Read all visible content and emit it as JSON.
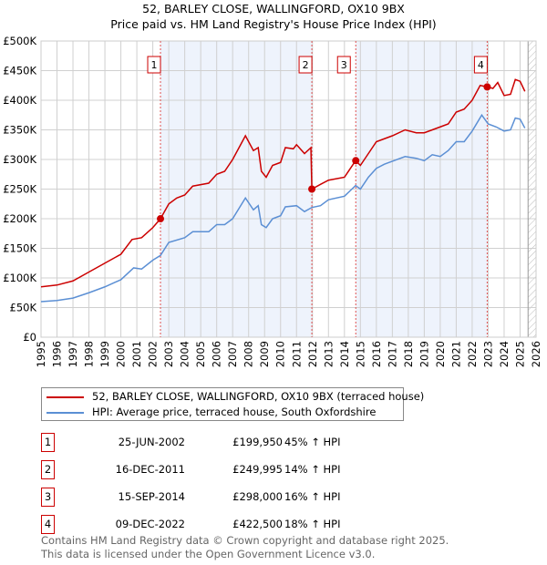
{
  "chart_data": {
    "type": "line",
    "title": "52, BARLEY CLOSE, WALLINGFORD, OX10 9BX",
    "subtitle": "Price paid vs. HM Land Registry's House Price Index (HPI)",
    "xlim": [
      1995,
      2026
    ],
    "ylim": [
      0,
      500000
    ],
    "x_ticks": [
      "1995",
      "1996",
      "1997",
      "1998",
      "1999",
      "2000",
      "2001",
      "2002",
      "2003",
      "2004",
      "2005",
      "2006",
      "2007",
      "2008",
      "2009",
      "2010",
      "2011",
      "2012",
      "2013",
      "2014",
      "2015",
      "2016",
      "2017",
      "2018",
      "2019",
      "2020",
      "2021",
      "2022",
      "2023",
      "2024",
      "2025",
      "2026"
    ],
    "y_ticks": [
      {
        "v": 0,
        "l": "£0"
      },
      {
        "v": 50000,
        "l": "£50K"
      },
      {
        "v": 100000,
        "l": "£100K"
      },
      {
        "v": 150000,
        "l": "£150K"
      },
      {
        "v": 200000,
        "l": "£200K"
      },
      {
        "v": 250000,
        "l": "£250K"
      },
      {
        "v": 300000,
        "l": "£300K"
      },
      {
        "v": 350000,
        "l": "£350K"
      },
      {
        "v": 400000,
        "l": "£400K"
      },
      {
        "v": 450000,
        "l": "£450K"
      },
      {
        "v": 500000,
        "l": "£500K"
      }
    ],
    "grid": true,
    "series": [
      {
        "name": "52, BARLEY CLOSE, WALLINGFORD, OX10 9BX (terraced house)",
        "color": "#cc0000",
        "x": [
          1995,
          1996,
          1997,
          1998,
          1999,
          2000,
          2000.7,
          2001.3,
          2002,
          2002.48,
          2003,
          2003.5,
          2004,
          2004.5,
          2005.5,
          2006,
          2006.5,
          2007,
          2007.8,
          2008.3,
          2008.6,
          2008.8,
          2009.1,
          2009.5,
          2010,
          2010.3,
          2010.8,
          2011,
          2011.5,
          2011.9,
          2011.96,
          2012.5,
          2013,
          2014,
          2014.7,
          2015,
          2015.5,
          2016,
          2016.5,
          2017,
          2017.8,
          2018.5,
          2019,
          2019.5,
          2020,
          2020.5,
          2021,
          2021.5,
          2022,
          2022.5,
          2022.94,
          2023.3,
          2023.6,
          2024,
          2024.4,
          2024.7,
          2025,
          2025.3
        ],
        "y": [
          85000,
          88000,
          95000,
          110000,
          125000,
          140000,
          165000,
          168000,
          185000,
          199950,
          225000,
          235000,
          240000,
          255000,
          260000,
          275000,
          280000,
          300000,
          340000,
          315000,
          320000,
          280000,
          270000,
          290000,
          295000,
          320000,
          318000,
          325000,
          310000,
          320000,
          249995,
          258000,
          265000,
          270000,
          298000,
          290000,
          310000,
          330000,
          335000,
          340000,
          350000,
          345000,
          345000,
          350000,
          355000,
          360000,
          380000,
          385000,
          400000,
          425000,
          422500,
          420000,
          430000,
          408000,
          410000,
          435000,
          432000,
          415000
        ]
      },
      {
        "name": "HPI: Average price, terraced house, South Oxfordshire",
        "color": "#5b8fd4",
        "x": [
          1995,
          1996,
          1997,
          1998,
          1999,
          2000,
          2000.8,
          2001.3,
          2002,
          2002.48,
          2003,
          2004,
          2004.5,
          2005.5,
          2006,
          2006.5,
          2007,
          2007.8,
          2008.3,
          2008.6,
          2008.8,
          2009.1,
          2009.5,
          2010,
          2010.3,
          2011,
          2011.5,
          2011.96,
          2012.5,
          2013,
          2014,
          2014.7,
          2015,
          2015.5,
          2016,
          2016.5,
          2017,
          2017.8,
          2018.5,
          2019,
          2019.5,
          2020,
          2020.5,
          2021,
          2021.5,
          2022,
          2022.6,
          2023,
          2023.5,
          2024,
          2024.4,
          2024.7,
          2025,
          2025.3
        ],
        "y": [
          60000,
          62000,
          66000,
          75000,
          85000,
          97000,
          117000,
          115000,
          130000,
          138000,
          160000,
          168000,
          178000,
          178000,
          190000,
          190000,
          200000,
          235000,
          215000,
          222000,
          190000,
          185000,
          200000,
          205000,
          220000,
          222000,
          212000,
          219000,
          222000,
          232000,
          238000,
          256000,
          250000,
          270000,
          285000,
          292000,
          297000,
          305000,
          302000,
          298000,
          308000,
          305000,
          315000,
          330000,
          330000,
          348000,
          375000,
          360000,
          355000,
          348000,
          350000,
          370000,
          368000,
          353000
        ]
      }
    ],
    "sales": [
      {
        "id": "1",
        "x": 2002.48,
        "y": 199950,
        "date": "25-JUN-2002",
        "price": "£199,950",
        "hpi": "45% ↑ HPI"
      },
      {
        "id": "2",
        "x": 2011.96,
        "y": 249995,
        "date": "16-DEC-2011",
        "price": "£249,995",
        "hpi": "14% ↑ HPI"
      },
      {
        "id": "3",
        "x": 2014.71,
        "y": 298000,
        "date": "15-SEP-2014",
        "price": "£298,000",
        "hpi": "16% ↑ HPI"
      },
      {
        "id": "4",
        "x": 2022.94,
        "y": 422500,
        "date": "09-DEC-2022",
        "price": "£422,500",
        "hpi": "18% ↑ HPI"
      }
    ],
    "forecast_start": 2025.5
  },
  "footer": [
    "Contains HM Land Registry data © Crown copyright and database right 2025.",
    "This data is licensed under the Open Government Licence v3.0."
  ]
}
